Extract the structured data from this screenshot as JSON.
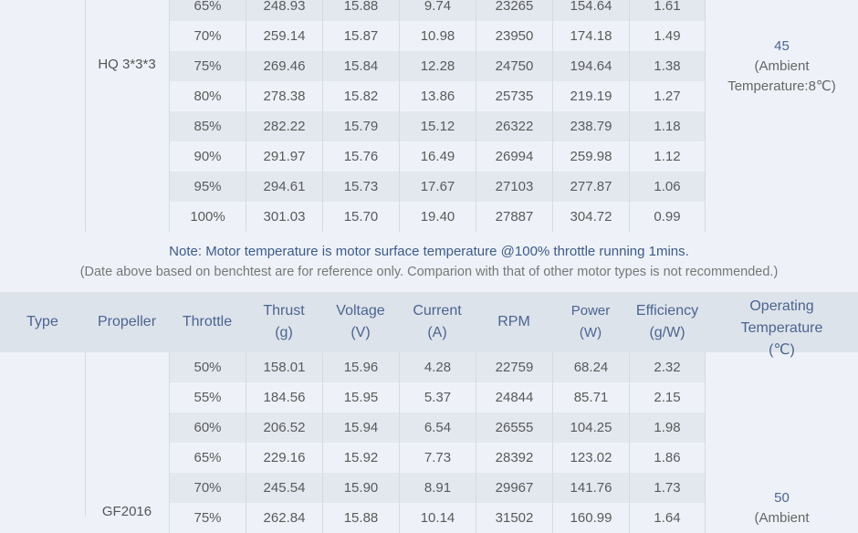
{
  "top_group": {
    "propeller": "HQ 3*3*3",
    "temperature": {
      "value": "45",
      "line2": "(Ambient",
      "line3": "Temperature:8℃)"
    },
    "rows": [
      [
        "65%",
        "248.93",
        "15.88",
        "9.74",
        "23265",
        "154.64",
        "1.61"
      ],
      [
        "70%",
        "259.14",
        "15.87",
        "10.98",
        "23950",
        "174.18",
        "1.49"
      ],
      [
        "75%",
        "269.46",
        "15.84",
        "12.28",
        "24750",
        "194.64",
        "1.38"
      ],
      [
        "80%",
        "278.38",
        "15.82",
        "13.86",
        "25735",
        "219.19",
        "1.27"
      ],
      [
        "85%",
        "282.22",
        "15.79",
        "15.12",
        "26322",
        "238.79",
        "1.18"
      ],
      [
        "90%",
        "291.97",
        "15.76",
        "16.49",
        "26994",
        "259.98",
        "1.12"
      ],
      [
        "95%",
        "294.61",
        "15.73",
        "17.67",
        "27103",
        "277.87",
        "1.06"
      ],
      [
        "100%",
        "301.03",
        "15.70",
        "19.40",
        "27887",
        "304.72",
        "0.99"
      ]
    ]
  },
  "note": {
    "line1": "Note: Motor temperature is motor surface temperature @100% throttle running 1mins.",
    "line2": "(Date above based on benchtest are for reference only. Comparion with that of other motor types is not recommended.)"
  },
  "header": {
    "type": "Type",
    "propeller": "Propeller",
    "throttle": "Throttle",
    "thrust": [
      "Thrust",
      "(g)"
    ],
    "voltage": [
      "Voltage",
      "(V)"
    ],
    "current": [
      "Current",
      "(A)"
    ],
    "rpm": "RPM",
    "power": [
      "Power",
      "(W)"
    ],
    "efficiency": [
      "Efficiency",
      "(g/W)"
    ],
    "temperature": [
      "Operating",
      "Temperature",
      "(℃)"
    ]
  },
  "bottom_group": {
    "propeller": "GF2016",
    "temperature": {
      "value": "50",
      "line2": "(Ambient"
    },
    "rows": [
      [
        "50%",
        "158.01",
        "15.96",
        "4.28",
        "22759",
        "68.24",
        "2.32"
      ],
      [
        "55%",
        "184.56",
        "15.95",
        "5.37",
        "24844",
        "85.71",
        "2.15"
      ],
      [
        "60%",
        "206.52",
        "15.94",
        "6.54",
        "26555",
        "104.25",
        "1.98"
      ],
      [
        "65%",
        "229.16",
        "15.92",
        "7.73",
        "28392",
        "123.02",
        "1.86"
      ],
      [
        "70%",
        "245.54",
        "15.90",
        "8.91",
        "29967",
        "141.76",
        "1.73"
      ],
      [
        "75%",
        "262.84",
        "15.88",
        "10.14",
        "31502",
        "160.99",
        "1.64"
      ]
    ]
  }
}
